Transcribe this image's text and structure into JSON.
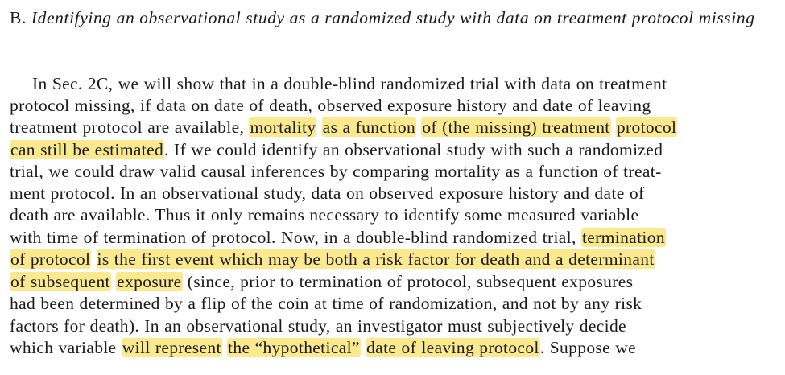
{
  "section": {
    "label": "B.",
    "title": "Identifying an observational study as a randomized study with data on treatment protocol missing"
  },
  "colors": {
    "highlight": "#fbe98f",
    "text": "#1a1a1a",
    "background": "#ffffff"
  },
  "lines": [
    {
      "segments": [
        {
          "text": "In Sec. 2C, we will show that in a double-blind randomized trial with data on treatment"
        }
      ]
    },
    {
      "segments": [
        {
          "text": "protocol missing, if data on date of death, observed exposure history and date of leaving"
        }
      ]
    },
    {
      "segments": [
        {
          "text": "treatment protocol are available, "
        },
        {
          "text": "mortality",
          "hl": true
        },
        {
          "text": " "
        },
        {
          "text": "as a function",
          "hl": true
        },
        {
          "text": " "
        },
        {
          "text": "of (the missing) treatment",
          "hl": true
        },
        {
          "text": " "
        },
        {
          "text": "protocol",
          "hl": true
        }
      ]
    },
    {
      "segments": [
        {
          "text": "can still be estimated",
          "hl": true
        },
        {
          "text": ". If we could identify an observational study with such a randomized"
        }
      ]
    },
    {
      "segments": [
        {
          "text": "trial, we could draw valid causal inferences by comparing mortality as a function of treat-"
        }
      ]
    },
    {
      "segments": [
        {
          "text": "ment protocol. In an observational study, data on observed exposure history and date of"
        }
      ]
    },
    {
      "segments": [
        {
          "text": "death are available. Thus it only remains necessary to identify some measured variable"
        }
      ]
    },
    {
      "segments": [
        {
          "text": "with time of termination of protocol. Now, in a double-blind randomized trial, "
        },
        {
          "text": "termination",
          "hl": true
        }
      ]
    },
    {
      "segments": [
        {
          "text": "of protocol",
          "hl": true
        },
        {
          "text": " "
        },
        {
          "text": "is the first event which may be both a risk factor for death and a determinant",
          "hl": true
        }
      ]
    },
    {
      "segments": [
        {
          "text": "of subsequent",
          "hl": true
        },
        {
          "text": " "
        },
        {
          "text": "exposure",
          "hl": true
        },
        {
          "text": " (since, prior to termination of protocol, subsequent exposures"
        }
      ]
    },
    {
      "segments": [
        {
          "text": "had been determined by a flip of the coin at time of randomization, and not by any risk"
        }
      ]
    },
    {
      "segments": [
        {
          "text": "factors for death). In an observational study, an investigator must subjectively decide"
        }
      ]
    },
    {
      "segments": [
        {
          "text": "which variable "
        },
        {
          "text": "will represent",
          "hl": true
        },
        {
          "text": " "
        },
        {
          "text": "the “hypothetical”",
          "hl": true
        },
        {
          "text": " "
        },
        {
          "text": "date of leaving protocol",
          "hl": true
        },
        {
          "text": ". Suppose we"
        }
      ]
    }
  ]
}
